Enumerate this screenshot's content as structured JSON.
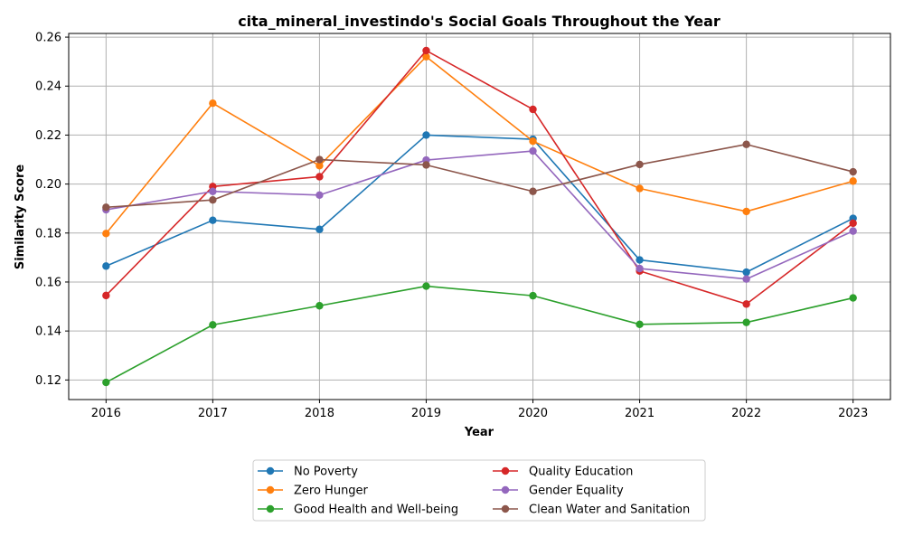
{
  "chart_data": {
    "type": "line",
    "title": "cita_mineral_investindo's Social Goals Throughout the Year",
    "xlabel": "Year",
    "ylabel": "Similarity Score",
    "x": [
      "2016",
      "2017",
      "2018",
      "2019",
      "2020",
      "2021",
      "2022",
      "2023"
    ],
    "xlim": [
      2015.65,
      2023.35
    ],
    "ylim": [
      0.112,
      0.2615
    ],
    "yticks": [
      "0.12",
      "0.14",
      "0.16",
      "0.18",
      "0.20",
      "0.22",
      "0.24",
      "0.26"
    ],
    "grid": true,
    "legend_position": "bottom-center, below plot, two columns",
    "series": [
      {
        "name": "No Poverty",
        "color": "#1f77b4",
        "values": [
          0.1665,
          0.1852,
          0.1815,
          0.22,
          0.2183,
          0.169,
          0.164,
          0.186
        ]
      },
      {
        "name": "Zero Hunger",
        "color": "#ff7f0e",
        "values": [
          0.1798,
          0.233,
          0.2075,
          0.252,
          0.2175,
          0.1982,
          0.1888,
          0.2012
        ]
      },
      {
        "name": "Good Health and Well-being",
        "color": "#2ca02c",
        "values": [
          0.119,
          0.1425,
          0.1503,
          0.1583,
          0.1544,
          0.1427,
          0.1435,
          0.1535
        ]
      },
      {
        "name": "Quality Education",
        "color": "#d62728",
        "values": [
          0.1545,
          0.199,
          0.203,
          0.2545,
          0.2305,
          0.1645,
          0.151,
          0.184
        ]
      },
      {
        "name": "Gender Equality",
        "color": "#9467bd",
        "values": [
          0.1895,
          0.197,
          0.1955,
          0.2098,
          0.2135,
          0.1655,
          0.1612,
          0.1808
        ]
      },
      {
        "name": "Clean Water and Sanitation",
        "color": "#8c564b",
        "values": [
          0.1905,
          0.1935,
          0.21,
          0.2078,
          0.197,
          0.208,
          0.2162,
          0.205
        ]
      }
    ]
  }
}
